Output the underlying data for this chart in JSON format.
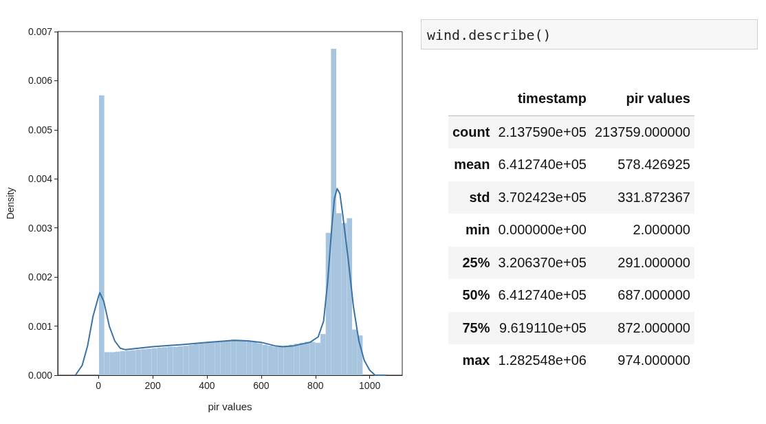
{
  "chart_data": [
    {
      "type": "histogram",
      "xlabel": "pir values",
      "ylabel": "Density",
      "color": "#a7c5de",
      "bins": [
        2,
        21.44,
        40.88,
        60.32,
        79.76,
        99.2,
        118.64,
        138.08,
        157.52,
        176.96,
        196.4,
        215.84,
        235.28,
        254.72,
        274.16,
        293.6,
        313.04,
        332.48,
        351.92,
        371.36,
        390.8,
        410.24,
        429.68,
        449.12,
        468.56,
        488,
        507.44,
        526.88,
        546.32,
        565.76,
        585.2,
        604.64,
        624.08,
        643.52,
        662.96,
        682.4,
        701.84,
        721.28,
        740.72,
        760.16,
        779.6,
        799.04,
        818.48,
        837.92,
        857.36,
        876.8,
        896.24,
        915.68,
        935.12,
        954.56,
        974
      ],
      "values": [
        0.0057,
        0.00047,
        0.00047,
        0.00048,
        0.00049,
        0.0005,
        0.00051,
        0.00052,
        0.00053,
        0.00054,
        0.00055,
        0.00056,
        0.00057,
        0.00058,
        0.00058,
        0.00059,
        0.0006,
        0.00062,
        0.00064,
        0.00065,
        0.00066,
        0.00067,
        0.00068,
        0.0007,
        0.00071,
        0.00072,
        0.00072,
        0.00071,
        0.0007,
        0.00068,
        0.00065,
        0.00062,
        0.0006,
        0.00058,
        0.00058,
        0.0006,
        0.00062,
        0.00064,
        0.00066,
        0.00068,
        0.00068,
        0.00066,
        0.00084,
        0.0029,
        0.00665,
        0.0033,
        0.0031,
        0.0032,
        0.00093,
        0.00081
      ],
      "series": [
        {
          "type": "line",
          "color": "#3a72a3",
          "x": [
            -85,
            -60,
            -40,
            -20,
            0,
            5,
            20,
            40,
            60,
            80,
            100,
            200,
            300,
            400,
            500,
            550,
            600,
            650,
            680,
            720,
            780,
            810,
            830,
            845,
            860,
            870,
            880,
            890,
            900,
            920,
            940,
            960,
            980,
            1000,
            1020,
            1060
          ],
          "values": [
            0,
            0.0002,
            0.0006,
            0.0012,
            0.0016,
            0.00168,
            0.0015,
            0.001,
            0.0007,
            0.00055,
            0.00052,
            0.00058,
            0.00062,
            0.00067,
            0.00071,
            0.0007,
            0.00067,
            0.0006,
            0.00058,
            0.0006,
            0.00067,
            0.00078,
            0.0011,
            0.0019,
            0.003,
            0.0036,
            0.0038,
            0.0037,
            0.0033,
            0.0024,
            0.0014,
            0.0007,
            0.0003,
            0.0001,
            0,
            0
          ]
        }
      ],
      "xlim": [
        -150,
        1120
      ],
      "xticks": [
        0,
        200,
        400,
        600,
        800,
        1000
      ],
      "ylim": [
        0,
        0.007
      ],
      "yticks": [
        {
          "value": 0,
          "label": "0.000"
        },
        0.001,
        0.002,
        0.003,
        0.004,
        0.005,
        0.006,
        0.007
      ],
      "grid": false
    },
    {
      "type": "other",
      "title": "wind.describe()",
      "categories": [
        "timestamp",
        "pir values"
      ],
      "y_categories": [
        "count",
        "mean",
        "std",
        "min",
        "25%",
        "50%",
        "75%",
        "max"
      ],
      "cell_labels": [
        [
          "2.137590e+05",
          "213759.000000"
        ],
        [
          "6.412740e+05",
          "578.426925"
        ],
        [
          "3.702423e+05",
          "331.872367"
        ],
        [
          "0.000000e+00",
          "2.000000"
        ],
        [
          "3.206370e+05",
          "291.000000"
        ],
        [
          "6.412740e+05",
          "687.000000"
        ],
        [
          "9.619110e+05",
          "872.000000"
        ],
        [
          "1.282548e+06",
          "974.000000"
        ]
      ]
    }
  ]
}
